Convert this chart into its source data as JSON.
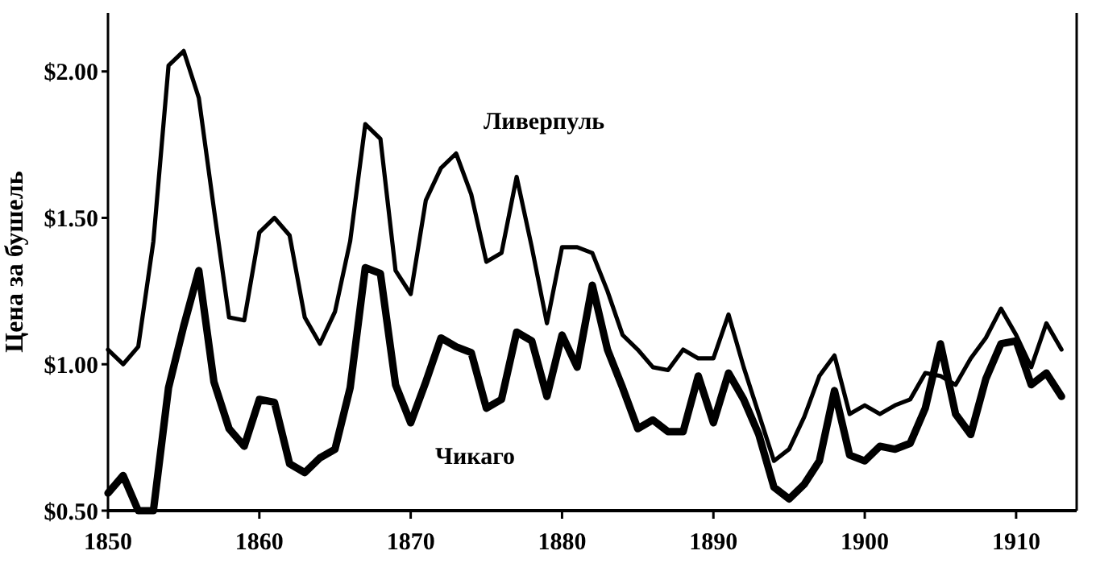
{
  "chart_data": {
    "type": "line",
    "ylabel": "Цена за бушель",
    "x": [
      1850,
      1851,
      1852,
      1853,
      1854,
      1855,
      1856,
      1857,
      1858,
      1859,
      1860,
      1861,
      1862,
      1863,
      1864,
      1865,
      1866,
      1867,
      1868,
      1869,
      1870,
      1871,
      1872,
      1873,
      1874,
      1875,
      1876,
      1877,
      1878,
      1879,
      1880,
      1881,
      1882,
      1883,
      1884,
      1885,
      1886,
      1887,
      1888,
      1889,
      1890,
      1891,
      1892,
      1893,
      1894,
      1895,
      1896,
      1897,
      1898,
      1899,
      1900,
      1901,
      1902,
      1903,
      1904,
      1905,
      1906,
      1907,
      1908,
      1909,
      1910,
      1911,
      1912,
      1913
    ],
    "series": [
      {
        "name": "Ливерпуль",
        "color": "#000000",
        "values": [
          1.05,
          1.0,
          1.06,
          1.42,
          2.02,
          2.07,
          1.91,
          1.53,
          1.16,
          1.15,
          1.45,
          1.5,
          1.44,
          1.16,
          1.07,
          1.18,
          1.42,
          1.82,
          1.77,
          1.32,
          1.24,
          1.56,
          1.67,
          1.72,
          1.58,
          1.35,
          1.38,
          1.64,
          1.4,
          1.14,
          1.4,
          1.4,
          1.38,
          1.25,
          1.1,
          1.05,
          0.99,
          0.98,
          1.05,
          1.02,
          1.02,
          1.17,
          0.99,
          0.83,
          0.67,
          0.71,
          0.82,
          0.96,
          1.03,
          0.83,
          0.86,
          0.83,
          0.86,
          0.88,
          0.97,
          0.96,
          0.93,
          1.02,
          1.09,
          1.19,
          1.1,
          0.99,
          1.14,
          1.05
        ]
      },
      {
        "name": "Чикаго",
        "color": "#000000",
        "values": [
          0.56,
          0.62,
          0.5,
          0.5,
          0.92,
          1.13,
          1.32,
          0.94,
          0.78,
          0.72,
          0.88,
          0.87,
          0.66,
          0.63,
          0.68,
          0.71,
          0.92,
          1.33,
          1.31,
          0.93,
          0.8,
          0.94,
          1.09,
          1.06,
          1.04,
          0.85,
          0.88,
          1.11,
          1.08,
          0.89,
          1.1,
          0.99,
          1.27,
          1.05,
          0.92,
          0.78,
          0.81,
          0.77,
          0.77,
          0.96,
          0.8,
          0.97,
          0.88,
          0.76,
          0.58,
          0.54,
          0.59,
          0.67,
          0.91,
          0.69,
          0.67,
          0.72,
          0.71,
          0.73,
          0.85,
          1.07,
          0.83,
          0.76,
          0.95,
          1.07,
          1.08,
          0.93,
          0.97,
          0.89
        ]
      }
    ],
    "xlim": [
      1850,
      1914
    ],
    "xticks": [
      1850,
      1860,
      1870,
      1880,
      1890,
      1900,
      1910
    ],
    "ylim": [
      0.5,
      2.2
    ],
    "yticks": [
      {
        "value": 0.5,
        "label": "$0.50"
      },
      {
        "value": 1,
        "label": "$1.00"
      },
      {
        "value": 1.5,
        "label": "$1.50"
      },
      {
        "value": 2,
        "label": "$2.00"
      }
    ],
    "grid": false,
    "legend": false,
    "marker": "none",
    "line_style": "solid"
  }
}
